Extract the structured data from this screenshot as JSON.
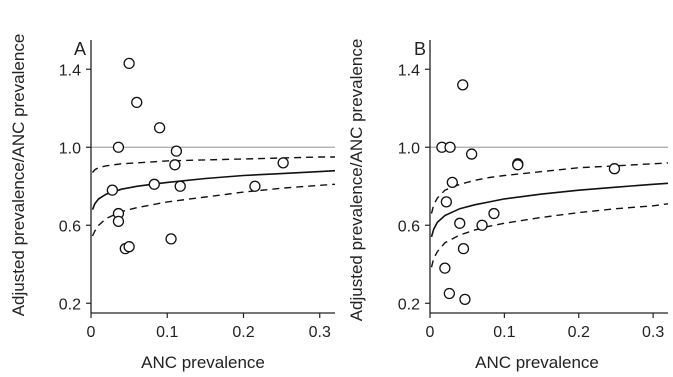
{
  "figure": {
    "ylabel": "Adjusted prevalence/ANC prevalence",
    "xlabel": "ANC prevalence"
  },
  "chart_data": [
    {
      "type": "scatter",
      "panel_label": "A",
      "xlabel": "ANC prevalence",
      "ylabel": "Adjusted prevalence/ANC prevalence",
      "xlim": [
        0,
        0.32
      ],
      "ylim": [
        0.15,
        1.55
      ],
      "x_ticks": [
        0,
        0.1,
        0.2,
        0.3
      ],
      "x_tick_labels": [
        "0",
        "0.1",
        "0.2",
        "0.3"
      ],
      "y_ticks": [
        0.2,
        0.6,
        1.0,
        1.4
      ],
      "y_tick_labels": [
        "0.2",
        "0.6",
        "1.0",
        "1.4"
      ],
      "reference_line": 1.0,
      "points": [
        {
          "x": 0.05,
          "y": 1.43
        },
        {
          "x": 0.06,
          "y": 1.23
        },
        {
          "x": 0.09,
          "y": 1.1
        },
        {
          "x": 0.036,
          "y": 1.0
        },
        {
          "x": 0.112,
          "y": 0.98
        },
        {
          "x": 0.11,
          "y": 0.91
        },
        {
          "x": 0.252,
          "y": 0.92
        },
        {
          "x": 0.028,
          "y": 0.78
        },
        {
          "x": 0.083,
          "y": 0.81
        },
        {
          "x": 0.117,
          "y": 0.8
        },
        {
          "x": 0.215,
          "y": 0.8
        },
        {
          "x": 0.036,
          "y": 0.66
        },
        {
          "x": 0.036,
          "y": 0.62
        },
        {
          "x": 0.105,
          "y": 0.53
        },
        {
          "x": 0.045,
          "y": 0.48
        },
        {
          "x": 0.05,
          "y": 0.49
        }
      ],
      "fit_curve": [
        [
          0.002,
          0.68
        ],
        [
          0.005,
          0.71
        ],
        [
          0.01,
          0.735
        ],
        [
          0.02,
          0.76
        ],
        [
          0.04,
          0.785
        ],
        [
          0.06,
          0.8
        ],
        [
          0.08,
          0.81
        ],
        [
          0.1,
          0.82
        ],
        [
          0.15,
          0.84
        ],
        [
          0.2,
          0.855
        ],
        [
          0.25,
          0.865
        ],
        [
          0.3,
          0.875
        ],
        [
          0.32,
          0.88
        ]
      ],
      "upper_band": [
        [
          0.002,
          0.87
        ],
        [
          0.005,
          0.885
        ],
        [
          0.01,
          0.895
        ],
        [
          0.02,
          0.905
        ],
        [
          0.04,
          0.915
        ],
        [
          0.06,
          0.92
        ],
        [
          0.08,
          0.925
        ],
        [
          0.1,
          0.93
        ],
        [
          0.15,
          0.935
        ],
        [
          0.2,
          0.94
        ],
        [
          0.25,
          0.945
        ],
        [
          0.3,
          0.95
        ],
        [
          0.32,
          0.95
        ]
      ],
      "lower_band": [
        [
          0.002,
          0.545
        ],
        [
          0.005,
          0.57
        ],
        [
          0.01,
          0.6
        ],
        [
          0.02,
          0.635
        ],
        [
          0.04,
          0.67
        ],
        [
          0.06,
          0.69
        ],
        [
          0.08,
          0.705
        ],
        [
          0.1,
          0.72
        ],
        [
          0.15,
          0.745
        ],
        [
          0.2,
          0.77
        ],
        [
          0.25,
          0.79
        ],
        [
          0.3,
          0.805
        ],
        [
          0.32,
          0.81
        ]
      ]
    },
    {
      "type": "scatter",
      "panel_label": "B",
      "xlabel": "ANC prevalence",
      "ylabel": "Adjusted prevalence/ANC prevalence",
      "xlim": [
        0,
        0.32
      ],
      "ylim": [
        0.15,
        1.55
      ],
      "x_ticks": [
        0,
        0.1,
        0.2,
        0.3
      ],
      "x_tick_labels": [
        "0",
        "0.1",
        "0.2",
        "0.3"
      ],
      "y_ticks": [
        0.2,
        0.6,
        1.0,
        1.4
      ],
      "y_tick_labels": [
        "0.2",
        "0.6",
        "1.0",
        "1.4"
      ],
      "reference_line": 1.0,
      "points": [
        {
          "x": 0.044,
          "y": 1.32
        },
        {
          "x": 0.016,
          "y": 1.0
        },
        {
          "x": 0.027,
          "y": 1.0
        },
        {
          "x": 0.056,
          "y": 0.965
        },
        {
          "x": 0.118,
          "y": 0.915
        },
        {
          "x": 0.118,
          "y": 0.91
        },
        {
          "x": 0.248,
          "y": 0.89
        },
        {
          "x": 0.03,
          "y": 0.82
        },
        {
          "x": 0.022,
          "y": 0.72
        },
        {
          "x": 0.086,
          "y": 0.66
        },
        {
          "x": 0.04,
          "y": 0.61
        },
        {
          "x": 0.07,
          "y": 0.6
        },
        {
          "x": 0.045,
          "y": 0.48
        },
        {
          "x": 0.02,
          "y": 0.38
        },
        {
          "x": 0.026,
          "y": 0.25
        },
        {
          "x": 0.047,
          "y": 0.22
        }
      ],
      "fit_curve": [
        [
          0.002,
          0.54
        ],
        [
          0.005,
          0.58
        ],
        [
          0.01,
          0.615
        ],
        [
          0.02,
          0.65
        ],
        [
          0.04,
          0.685
        ],
        [
          0.06,
          0.705
        ],
        [
          0.08,
          0.72
        ],
        [
          0.1,
          0.735
        ],
        [
          0.15,
          0.76
        ],
        [
          0.2,
          0.78
        ],
        [
          0.25,
          0.795
        ],
        [
          0.3,
          0.81
        ],
        [
          0.32,
          0.815
        ]
      ],
      "upper_band": [
        [
          0.002,
          0.66
        ],
        [
          0.005,
          0.705
        ],
        [
          0.01,
          0.74
        ],
        [
          0.02,
          0.78
        ],
        [
          0.04,
          0.81
        ],
        [
          0.06,
          0.83
        ],
        [
          0.08,
          0.845
        ],
        [
          0.1,
          0.855
        ],
        [
          0.15,
          0.875
        ],
        [
          0.2,
          0.895
        ],
        [
          0.25,
          0.905
        ],
        [
          0.3,
          0.915
        ],
        [
          0.32,
          0.92
        ]
      ],
      "lower_band": [
        [
          0.002,
          0.385
        ],
        [
          0.005,
          0.43
        ],
        [
          0.01,
          0.465
        ],
        [
          0.02,
          0.51
        ],
        [
          0.04,
          0.55
        ],
        [
          0.06,
          0.575
        ],
        [
          0.08,
          0.595
        ],
        [
          0.1,
          0.61
        ],
        [
          0.15,
          0.64
        ],
        [
          0.2,
          0.665
        ],
        [
          0.25,
          0.685
        ],
        [
          0.3,
          0.7
        ],
        [
          0.32,
          0.71
        ]
      ]
    }
  ]
}
